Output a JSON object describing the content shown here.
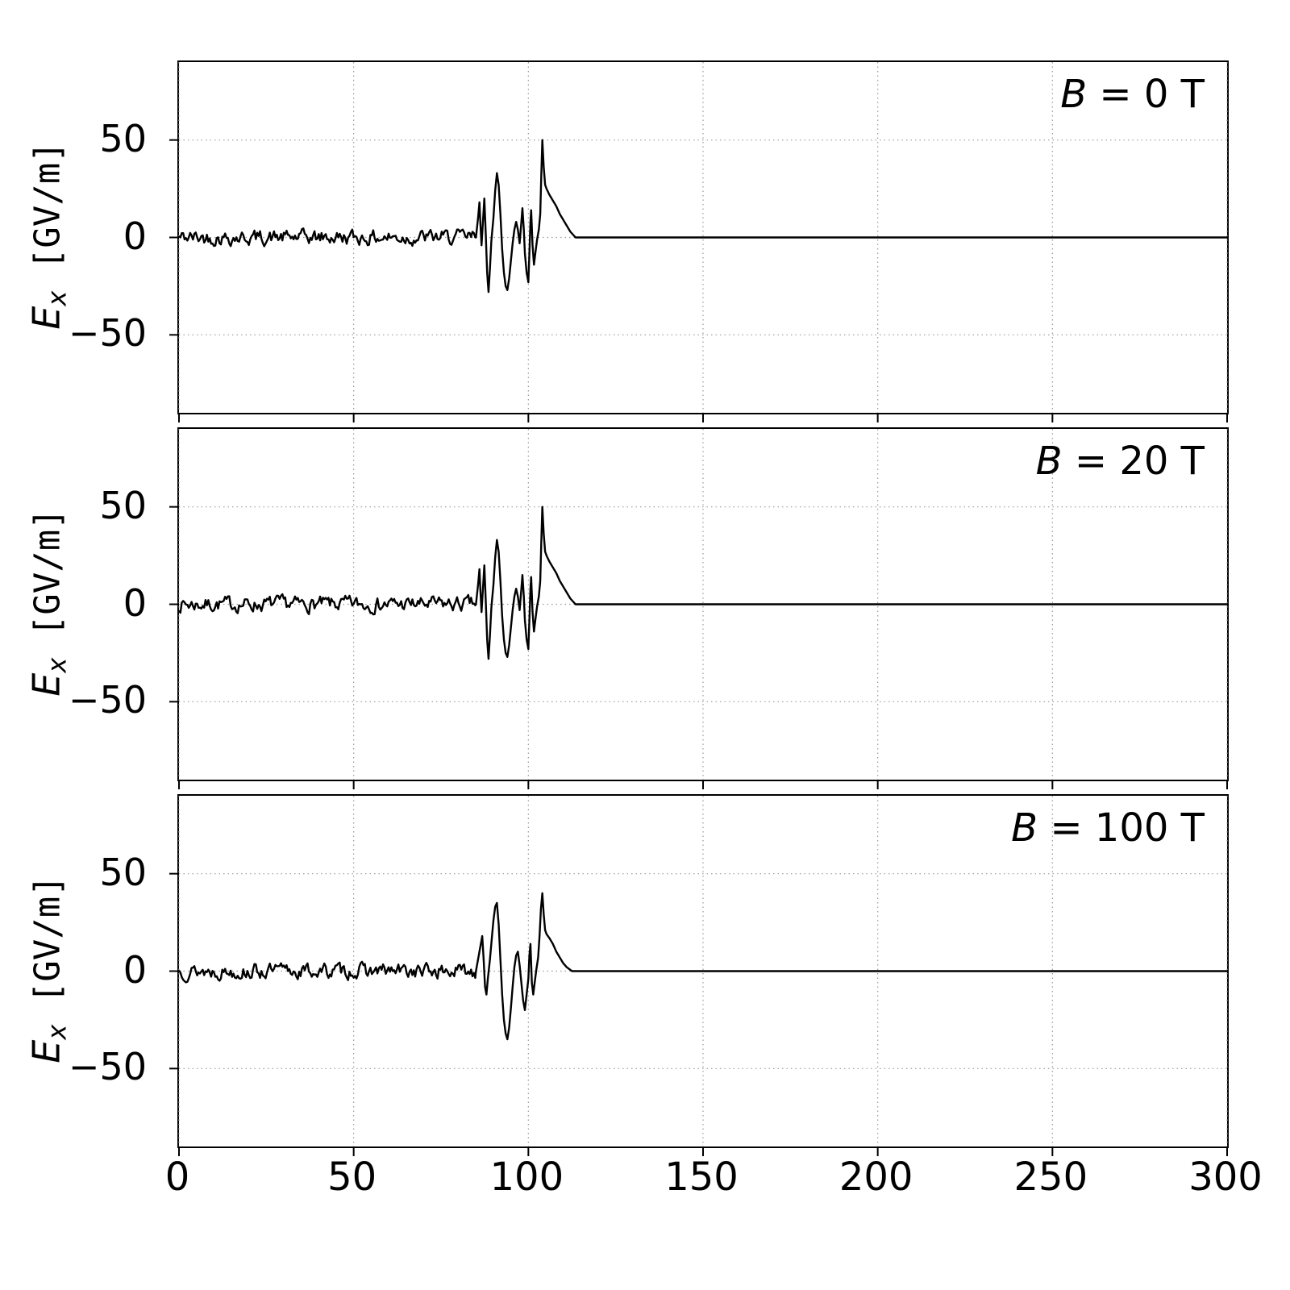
{
  "figure": {
    "background": "#ffffff",
    "line_color": "#000000",
    "grid_color": "#999999",
    "spine_color": "#000000"
  },
  "ylabel": {
    "var": "E",
    "sub": "x",
    "units": " [GV/m]"
  },
  "chart_data": {
    "type": "line",
    "title": "",
    "xlabel": "",
    "ylabel": "E_x [GV/m]",
    "xlim": [
      0,
      300
    ],
    "ylim": [
      -90,
      90
    ],
    "xticks": [
      0,
      50,
      100,
      150,
      200,
      250,
      300
    ],
    "yticks": [
      50,
      0,
      -50
    ],
    "grid": true,
    "grid_style": "dotted",
    "legend_position": "none",
    "panels": [
      {
        "label_var": "B",
        "label_rest": " = 0 T",
        "label": "B = 0 T",
        "noise": {
          "x_start": 0,
          "x_end": 85,
          "amplitude": 3.2,
          "seed": 42,
          "step": 0.4
        },
        "wake_points": [
          [
            85,
            0
          ],
          [
            85.6,
            10
          ],
          [
            86,
            18
          ],
          [
            86.3,
            6
          ],
          [
            86.6,
            -4
          ],
          [
            87,
            8
          ],
          [
            87.4,
            20
          ],
          [
            87.8,
            2
          ],
          [
            88.2,
            -18
          ],
          [
            88.6,
            -28
          ],
          [
            89,
            -16
          ],
          [
            89.4,
            -2
          ],
          [
            90,
            10
          ],
          [
            90.5,
            24
          ],
          [
            91,
            33
          ],
          [
            91.5,
            27
          ],
          [
            92,
            12
          ],
          [
            92.5,
            -6
          ],
          [
            93,
            -18
          ],
          [
            93.5,
            -25
          ],
          [
            94,
            -27
          ],
          [
            94.5,
            -21
          ],
          [
            95,
            -12
          ],
          [
            95.5,
            -3
          ],
          [
            96,
            4
          ],
          [
            96.5,
            8
          ],
          [
            97,
            4
          ],
          [
            97.5,
            -3
          ],
          [
            98,
            8
          ],
          [
            98.3,
            15
          ],
          [
            98.7,
            4
          ],
          [
            99,
            -8
          ],
          [
            99.5,
            -18
          ],
          [
            100,
            -23
          ],
          [
            100.3,
            -8
          ],
          [
            100.6,
            8
          ],
          [
            100.8,
            14
          ],
          [
            101.2,
            -4
          ],
          [
            101.6,
            -14
          ],
          [
            102,
            -8
          ],
          [
            102.5,
            -1
          ],
          [
            103,
            4
          ],
          [
            103.4,
            12
          ],
          [
            103.7,
            32
          ],
          [
            104,
            50
          ],
          [
            104.4,
            36
          ],
          [
            104.8,
            27
          ],
          [
            105.2,
            25
          ],
          [
            106,
            22
          ],
          [
            107,
            19
          ],
          [
            108,
            16
          ],
          [
            109,
            12
          ],
          [
            110,
            9
          ],
          [
            111,
            6
          ],
          [
            112,
            3
          ],
          [
            113.5,
            0
          ],
          [
            300,
            0
          ]
        ]
      },
      {
        "label_var": "B",
        "label_rest": " = 20 T",
        "label": "B = 20 T",
        "noise": {
          "x_start": 0,
          "x_end": 85,
          "amplitude": 3.2,
          "seed": 7,
          "step": 0.4
        },
        "wake_points": [
          [
            85,
            0
          ],
          [
            85.6,
            10
          ],
          [
            86,
            18
          ],
          [
            86.3,
            6
          ],
          [
            86.6,
            -4
          ],
          [
            87,
            8
          ],
          [
            87.4,
            20
          ],
          [
            87.8,
            2
          ],
          [
            88.2,
            -18
          ],
          [
            88.6,
            -28
          ],
          [
            89,
            -16
          ],
          [
            89.4,
            -2
          ],
          [
            90,
            10
          ],
          [
            90.5,
            24
          ],
          [
            91,
            33
          ],
          [
            91.5,
            27
          ],
          [
            92,
            12
          ],
          [
            92.5,
            -6
          ],
          [
            93,
            -18
          ],
          [
            93.5,
            -25
          ],
          [
            94,
            -27
          ],
          [
            94.5,
            -21
          ],
          [
            95,
            -12
          ],
          [
            95.5,
            -3
          ],
          [
            96,
            4
          ],
          [
            96.5,
            8
          ],
          [
            97,
            4
          ],
          [
            97.5,
            -3
          ],
          [
            98,
            8
          ],
          [
            98.3,
            15
          ],
          [
            98.7,
            4
          ],
          [
            99,
            -8
          ],
          [
            99.5,
            -18
          ],
          [
            100,
            -23
          ],
          [
            100.3,
            -8
          ],
          [
            100.6,
            8
          ],
          [
            100.8,
            14
          ],
          [
            101.2,
            -4
          ],
          [
            101.6,
            -14
          ],
          [
            102,
            -8
          ],
          [
            102.5,
            -1
          ],
          [
            103,
            4
          ],
          [
            103.4,
            12
          ],
          [
            103.7,
            32
          ],
          [
            104,
            50
          ],
          [
            104.4,
            36
          ],
          [
            104.8,
            27
          ],
          [
            105.2,
            25
          ],
          [
            106,
            22
          ],
          [
            107,
            19
          ],
          [
            108,
            16
          ],
          [
            109,
            12
          ],
          [
            110,
            9
          ],
          [
            111,
            6
          ],
          [
            112,
            3
          ],
          [
            113.5,
            0
          ],
          [
            300,
            0
          ]
        ]
      },
      {
        "label_var": "B",
        "label_rest": " = 100 T",
        "label": "B = 100 T",
        "noise": {
          "x_start": 0,
          "x_end": 85,
          "amplitude": 3.2,
          "seed": 13,
          "step": 0.4
        },
        "wake_points": [
          [
            85,
            0
          ],
          [
            85.6,
            6
          ],
          [
            86.2,
            12
          ],
          [
            86.8,
            18
          ],
          [
            87.2,
            6
          ],
          [
            87.6,
            -8
          ],
          [
            88,
            -12
          ],
          [
            88.4,
            -4
          ],
          [
            89,
            6
          ],
          [
            89.5,
            16
          ],
          [
            90,
            26
          ],
          [
            90.5,
            33
          ],
          [
            91,
            35
          ],
          [
            91.5,
            24
          ],
          [
            92,
            6
          ],
          [
            92.5,
            -12
          ],
          [
            93,
            -25
          ],
          [
            93.5,
            -32
          ],
          [
            94,
            -35
          ],
          [
            94.5,
            -29
          ],
          [
            95,
            -19
          ],
          [
            95.5,
            -8
          ],
          [
            96,
            2
          ],
          [
            96.5,
            8
          ],
          [
            97,
            10
          ],
          [
            97.5,
            3
          ],
          [
            98,
            -6
          ],
          [
            98.5,
            -15
          ],
          [
            99,
            -20
          ],
          [
            99.5,
            -12
          ],
          [
            100,
            -4
          ],
          [
            100.3,
            8
          ],
          [
            100.6,
            14
          ],
          [
            101,
            -6
          ],
          [
            101.4,
            -12
          ],
          [
            101.8,
            -6
          ],
          [
            102.3,
            1
          ],
          [
            102.8,
            7
          ],
          [
            103.2,
            18
          ],
          [
            103.6,
            32
          ],
          [
            104,
            40
          ],
          [
            104.4,
            29
          ],
          [
            104.8,
            21
          ],
          [
            105.2,
            19
          ],
          [
            106,
            17
          ],
          [
            107,
            14
          ],
          [
            108,
            10
          ],
          [
            109,
            7
          ],
          [
            110,
            4
          ],
          [
            111,
            2
          ],
          [
            112.5,
            0
          ],
          [
            300,
            0
          ]
        ]
      }
    ]
  }
}
